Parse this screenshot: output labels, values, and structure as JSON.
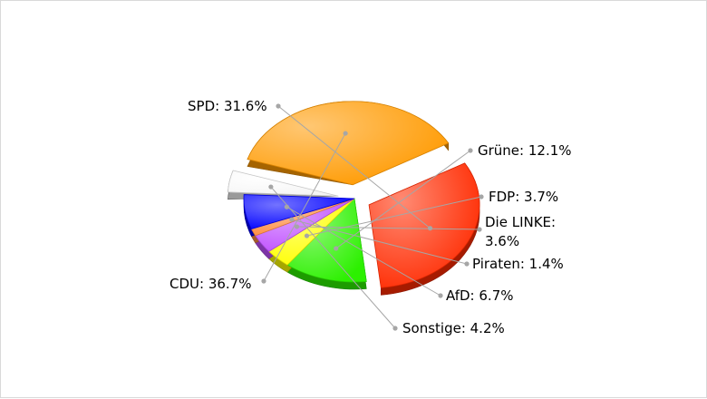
{
  "chart_data": {
    "type": "pie",
    "title": "",
    "slices": [
      {
        "name": "SPD",
        "value": 31.6,
        "label": "SPD: 31.6%",
        "color": "#ff2a00"
      },
      {
        "name": "Grüne",
        "value": 12.1,
        "label": "Grüne: 12.1%",
        "color": "#2cf000"
      },
      {
        "name": "FDP",
        "value": 3.7,
        "label": "FDP: 3.7%",
        "color": "#ffff00"
      },
      {
        "name": "Die LINKE",
        "value": 3.6,
        "label_lines": [
          "Die LINKE:",
          "3.6%"
        ],
        "color": "#c050ff"
      },
      {
        "name": "Piraten",
        "value": 1.4,
        "label": "Piraten: 1.4%",
        "color": "#ff8c40"
      },
      {
        "name": "AfD",
        "value": 6.7,
        "label": "AfD: 6.7%",
        "color": "#0000ff"
      },
      {
        "name": "Sonstige",
        "value": 4.2,
        "label": "Sonstige: 4.2%",
        "color": "#ffffff"
      },
      {
        "name": "CDU",
        "value": 36.7,
        "label": "CDU: 36.7%",
        "color": "#ff9a00"
      }
    ],
    "exploded": [
      "SPD",
      "Sonstige",
      "CDU"
    ],
    "style": "3d",
    "legend": "none",
    "labels": "outside with leader lines"
  }
}
